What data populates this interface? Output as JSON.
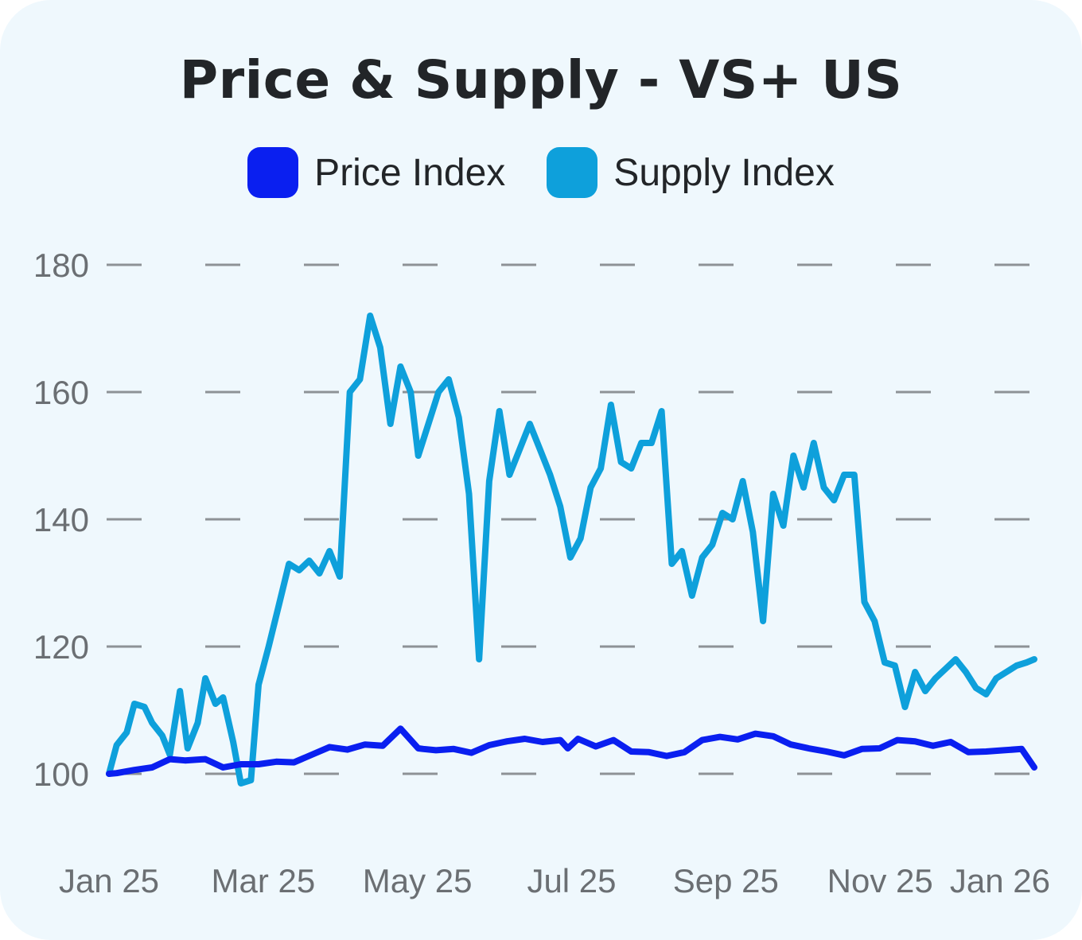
{
  "chart_data": {
    "type": "line",
    "title": "Price & Supply - VS+ US",
    "legend_placement": "top",
    "grid": true,
    "ylim": [
      100,
      180
    ],
    "yticks": [
      "100",
      "120",
      "140",
      "160",
      "180"
    ],
    "xticks": [
      "Jan 25",
      "Mar 25",
      "May 25",
      "Jul 25",
      "Sep 25",
      "Nov 25",
      "Jan 26"
    ],
    "x_range": [
      "2025-01-01",
      "2026-01-01"
    ],
    "colors": {
      "background": "#eff8fd",
      "grid": "#8e9296",
      "text": "#222528",
      "tick": "#6b6f73"
    },
    "series": [
      {
        "name": "Price Index",
        "color": "#0a1ff0",
        "x": [
          "2025-01-01",
          "2025-01-04",
          "2025-01-11",
          "2025-01-18",
          "2025-01-25",
          "2025-01-31",
          "2025-02-08",
          "2025-02-15",
          "2025-02-22",
          "2025-03-01",
          "2025-03-08",
          "2025-03-15",
          "2025-03-22",
          "2025-03-29",
          "2025-04-05",
          "2025-04-12",
          "2025-04-19",
          "2025-04-26",
          "2025-05-03",
          "2025-05-05",
          "2025-05-10",
          "2025-05-17",
          "2025-05-24",
          "2025-05-31",
          "2025-06-07",
          "2025-06-14",
          "2025-06-21",
          "2025-06-28",
          "2025-07-01",
          "2025-07-05",
          "2025-07-12",
          "2025-07-19",
          "2025-07-26",
          "2025-08-02",
          "2025-08-09",
          "2025-08-16",
          "2025-08-23",
          "2025-08-30",
          "2025-09-06",
          "2025-09-13",
          "2025-09-20",
          "2025-09-27",
          "2025-10-04",
          "2025-10-11",
          "2025-10-18",
          "2025-10-25",
          "2025-11-01",
          "2025-11-08",
          "2025-11-15",
          "2025-11-22",
          "2025-11-29",
          "2025-12-06",
          "2025-12-13",
          "2025-12-20",
          "2025-12-27",
          "2026-01-01"
        ],
        "values": [
          100.0,
          100.1,
          100.6,
          101.0,
          102.3,
          102.1,
          102.3,
          101.0,
          101.5,
          101.5,
          101.9,
          101.8,
          103.0,
          104.2,
          103.8,
          104.6,
          104.4,
          107.1,
          104.0,
          103.9,
          103.7,
          103.9,
          103.3,
          104.5,
          105.1,
          105.5,
          105.0,
          105.3,
          104.0,
          105.5,
          104.3,
          105.3,
          103.5,
          103.4,
          102.8,
          103.4,
          105.3,
          105.8,
          105.4,
          106.3,
          105.9,
          104.6,
          104.0,
          103.5,
          102.9,
          103.9,
          104.0,
          105.3,
          105.1,
          104.4,
          105.0,
          103.4,
          103.5,
          103.7,
          103.9,
          101.0
        ]
      },
      {
        "name": "Supply Index",
        "color": "#0ea0db",
        "x": [
          "2025-01-01",
          "2025-01-04",
          "2025-01-08",
          "2025-01-11",
          "2025-01-15",
          "2025-01-18",
          "2025-01-22",
          "2025-01-25",
          "2025-01-29",
          "2025-02-01",
          "2025-02-05",
          "2025-02-08",
          "2025-02-12",
          "2025-02-15",
          "2025-02-19",
          "2025-02-22",
          "2025-02-26",
          "2025-03-01",
          "2025-03-05",
          "2025-03-09",
          "2025-03-13",
          "2025-03-17",
          "2025-03-21",
          "2025-03-25",
          "2025-03-29",
          "2025-04-02",
          "2025-04-06",
          "2025-04-10",
          "2025-04-14",
          "2025-04-18",
          "2025-04-22",
          "2025-04-26",
          "2025-04-30",
          "2025-05-03",
          "2025-05-07",
          "2025-05-11",
          "2025-05-15",
          "2025-05-19",
          "2025-05-23",
          "2025-05-27",
          "2025-05-31",
          "2025-06-04",
          "2025-06-08",
          "2025-06-12",
          "2025-06-16",
          "2025-06-20",
          "2025-06-24",
          "2025-06-28",
          "2025-07-02",
          "2025-07-06",
          "2025-07-10",
          "2025-07-14",
          "2025-07-18",
          "2025-07-22",
          "2025-07-26",
          "2025-07-30",
          "2025-08-03",
          "2025-08-07",
          "2025-08-11",
          "2025-08-15",
          "2025-08-19",
          "2025-08-23",
          "2025-08-27",
          "2025-08-31",
          "2025-09-04",
          "2025-09-08",
          "2025-09-12",
          "2025-09-16",
          "2025-09-20",
          "2025-09-24",
          "2025-09-28",
          "2025-10-02",
          "2025-10-06",
          "2025-10-10",
          "2025-10-14",
          "2025-10-18",
          "2025-10-22",
          "2025-10-26",
          "2025-10-30",
          "2025-11-03",
          "2025-11-07",
          "2025-11-11",
          "2025-11-15",
          "2025-11-19",
          "2025-11-23",
          "2025-11-27",
          "2025-12-01",
          "2025-12-05",
          "2025-12-09",
          "2025-12-13",
          "2025-12-17",
          "2025-12-21",
          "2025-12-25",
          "2025-12-29",
          "2026-01-01"
        ],
        "values": [
          100.0,
          104.5,
          106.5,
          111.0,
          110.5,
          108.0,
          106.0,
          103.0,
          113.0,
          104.0,
          108.0,
          115.0,
          111.0,
          112.0,
          105.0,
          98.5,
          99.0,
          114.0,
          120.0,
          126.5,
          133.0,
          132.0,
          133.5,
          131.5,
          135.0,
          131.0,
          160.0,
          162.0,
          172.0,
          167.0,
          155.0,
          164.0,
          160.0,
          150.0,
          155.0,
          160.0,
          162.0,
          156.0,
          144.0,
          118.0,
          146.0,
          157.0,
          147.0,
          151.0,
          155.0,
          151.0,
          147.0,
          142.0,
          134.0,
          137.0,
          145.0,
          148.0,
          158.0,
          149.0,
          148.0,
          152.0,
          152.0,
          157.0,
          133.0,
          135.0,
          128.0,
          134.0,
          136.0,
          141.0,
          140.0,
          146.0,
          138.0,
          124.0,
          144.0,
          139.0,
          150.0,
          145.0,
          152.0,
          145.0,
          143.0,
          147.0,
          147.0,
          127.0,
          124.0,
          117.5,
          117.0,
          110.5,
          116.0,
          113.0,
          115.0,
          116.5,
          118.0,
          116.0,
          113.5,
          112.5,
          115.0,
          116.0,
          117.0,
          117.5,
          118.0
        ]
      }
    ]
  }
}
